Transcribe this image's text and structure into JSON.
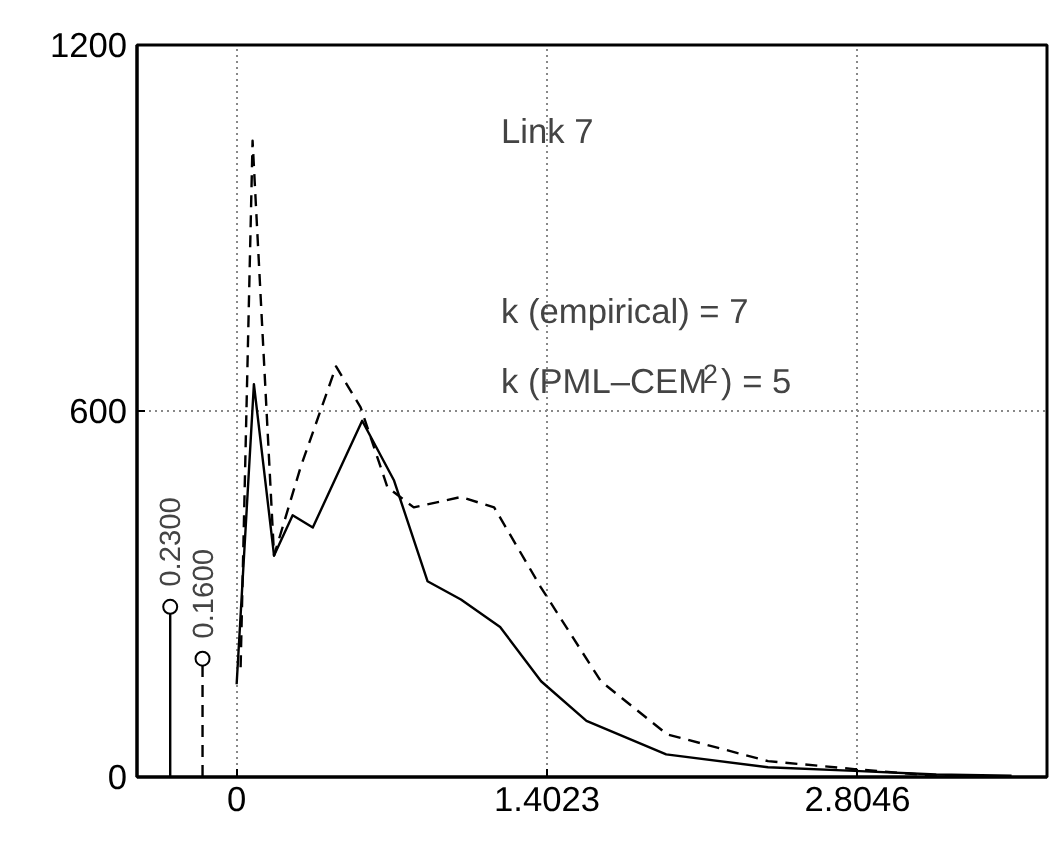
{
  "chart_data": {
    "type": "line",
    "xlim": [
      -0.45,
      3.66
    ],
    "ylim": [
      0,
      1200
    ],
    "xticks": [
      0,
      1.4023,
      2.8046
    ],
    "yticks": [
      0,
      600,
      1200
    ],
    "grid": true,
    "annotations": [
      "Link 7",
      "k (empirical) = 7",
      "k (PML–CEM$^{2}$) = 5",
      {
        "text": "0.2300",
        "x": -0.3,
        "y": 279
      },
      {
        "text": "0.1600",
        "x": -0.154,
        "y": 194
      }
    ],
    "series": [
      {
        "color": "#000000",
        "line_style": "solid",
        "x": [
          0.0,
          0.078,
          0.169,
          0.253,
          0.344,
          0.567,
          0.711,
          0.862,
          1.013,
          1.19,
          1.375,
          1.58,
          1.94,
          2.4,
          2.79,
          3.16,
          3.5
        ],
        "values": [
          152,
          644,
          363,
          429,
          409,
          584,
          486,
          321,
          291,
          246,
          157,
          92,
          37,
          16,
          10,
          4,
          2
        ]
      },
      {
        "color": "#000000",
        "line_style": "dashed",
        "x": [
          0.018,
          0.072,
          0.169,
          0.289,
          0.449,
          0.56,
          0.681,
          0.8,
          1.013,
          1.163,
          1.374,
          1.645,
          1.944,
          2.4,
          2.79,
          3.12,
          3.4
        ],
        "values": [
          180,
          1043,
          363,
          508,
          673,
          606,
          475,
          442,
          459,
          442,
          311,
          157,
          70,
          26,
          13,
          3,
          1
        ]
      },
      {
        "type": "lollipop",
        "color": "#000000",
        "line_style": "solid",
        "marker": "circle",
        "x": [
          -0.3
        ],
        "values": [
          279
        ]
      },
      {
        "type": "lollipop",
        "color": "#000000",
        "line_style": "dashed",
        "marker": "circle",
        "x": [
          -0.154
        ],
        "values": [
          194
        ]
      }
    ]
  }
}
